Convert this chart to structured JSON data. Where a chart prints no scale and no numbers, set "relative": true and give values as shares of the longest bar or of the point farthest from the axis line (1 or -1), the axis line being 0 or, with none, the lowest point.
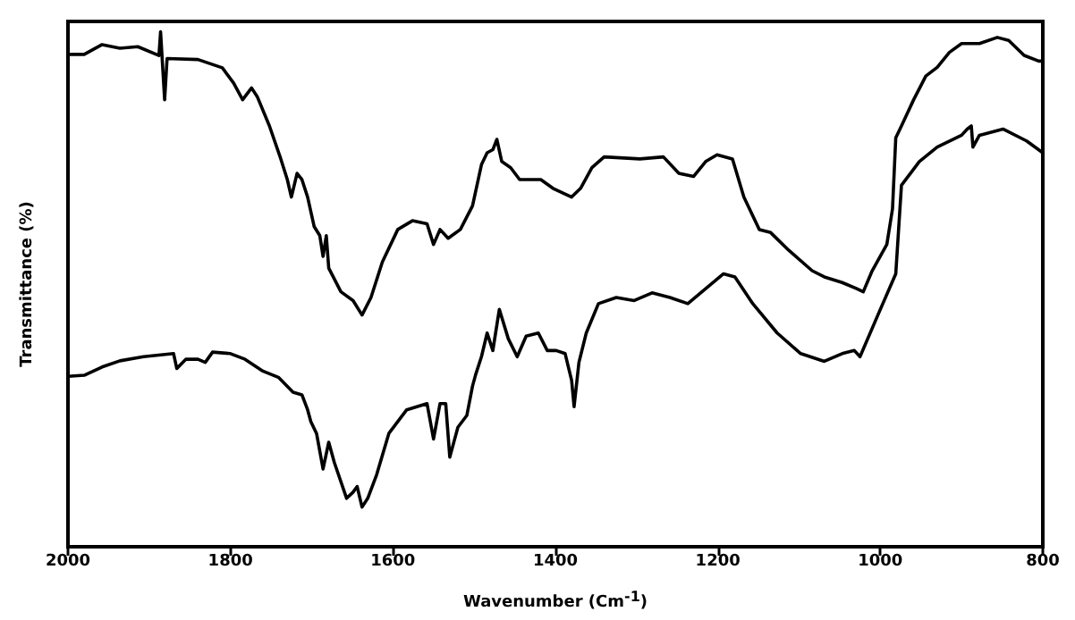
{
  "chart_data": {
    "type": "line",
    "relative": true,
    "xlabel": "Wavenumber (Cm$^{-1}$)",
    "ylabel": "Transmittance (%)",
    "xlim": [
      2000,
      800
    ],
    "xticks": [
      2000,
      1800,
      1600,
      1400,
      1200,
      1000,
      800
    ],
    "tick_labels": "x",
    "marker": "none",
    "line_style": "solid",
    "series": [
      {
        "color": "#000000",
        "x": [
          2000,
          1980,
          1958,
          1936,
          1914,
          1888,
          1886,
          1881,
          1878,
          1840,
          1810,
          1796,
          1785,
          1774,
          1767,
          1752,
          1738,
          1730,
          1725,
          1718,
          1712,
          1705,
          1697,
          1690,
          1686,
          1682,
          1679,
          1664,
          1649,
          1638,
          1627,
          1613,
          1594,
          1576,
          1558,
          1550,
          1542,
          1532,
          1517,
          1502,
          1491,
          1484,
          1477,
          1472,
          1466,
          1455,
          1444,
          1429,
          1418,
          1403,
          1380,
          1369,
          1355,
          1340,
          1296,
          1267,
          1248,
          1230,
          1215,
          1201,
          1182,
          1168,
          1149,
          1135,
          1113,
          1084,
          1069,
          1047,
          1029,
          1021,
          1010,
          992,
          985,
          981,
          974,
          959,
          944,
          930,
          915,
          900,
          878,
          856,
          842,
          823,
          805,
          800
        ],
        "values": [
          0.956,
          0.956,
          0.975,
          0.968,
          0.971,
          0.954,
          1.0,
          0.868,
          0.948,
          0.946,
          0.93,
          0.9,
          0.868,
          0.891,
          0.874,
          0.817,
          0.753,
          0.713,
          0.679,
          0.725,
          0.713,
          0.679,
          0.622,
          0.604,
          0.564,
          0.604,
          0.541,
          0.495,
          0.478,
          0.45,
          0.484,
          0.553,
          0.616,
          0.633,
          0.627,
          0.587,
          0.616,
          0.599,
          0.616,
          0.662,
          0.742,
          0.765,
          0.771,
          0.791,
          0.748,
          0.736,
          0.713,
          0.713,
          0.713,
          0.696,
          0.679,
          0.696,
          0.736,
          0.757,
          0.753,
          0.757,
          0.725,
          0.719,
          0.748,
          0.761,
          0.753,
          0.679,
          0.616,
          0.61,
          0.576,
          0.536,
          0.524,
          0.513,
          0.501,
          0.495,
          0.536,
          0.587,
          0.656,
          0.794,
          0.817,
          0.868,
          0.914,
          0.931,
          0.96,
          0.977,
          0.977,
          0.989,
          0.983,
          0.954,
          0.943,
          0.943
        ]
      },
      {
        "color": "#000000",
        "x": [
          2000,
          1980,
          1958,
          1936,
          1907,
          1870,
          1866,
          1855,
          1840,
          1831,
          1822,
          1800,
          1782,
          1760,
          1741,
          1723,
          1712,
          1705,
          1701,
          1694,
          1686,
          1679,
          1672,
          1657,
          1649,
          1644,
          1638,
          1631,
          1620,
          1605,
          1583,
          1558,
          1550,
          1542,
          1535,
          1530,
          1520,
          1509,
          1502,
          1498,
          1491,
          1484,
          1477,
          1469,
          1458,
          1447,
          1436,
          1421,
          1410,
          1399,
          1388,
          1380,
          1377,
          1371,
          1362,
          1347,
          1325,
          1303,
          1281,
          1259,
          1237,
          1215,
          1193,
          1179,
          1157,
          1127,
          1098,
          1069,
          1047,
          1032,
          1025,
          1003,
          981,
          974,
          952,
          930,
          900,
          893,
          888,
          886,
          878,
          849,
          820,
          800
        ],
        "values": [
          0.331,
          0.333,
          0.349,
          0.361,
          0.369,
          0.375,
          0.346,
          0.364,
          0.364,
          0.358,
          0.378,
          0.375,
          0.364,
          0.341,
          0.329,
          0.3,
          0.295,
          0.266,
          0.243,
          0.22,
          0.151,
          0.203,
          0.163,
          0.094,
          0.106,
          0.117,
          0.077,
          0.094,
          0.14,
          0.22,
          0.266,
          0.278,
          0.209,
          0.278,
          0.278,
          0.174,
          0.232,
          0.255,
          0.312,
          0.335,
          0.369,
          0.415,
          0.381,
          0.461,
          0.404,
          0.369,
          0.409,
          0.415,
          0.381,
          0.381,
          0.375,
          0.323,
          0.272,
          0.358,
          0.415,
          0.472,
          0.484,
          0.478,
          0.493,
          0.484,
          0.472,
          0.501,
          0.53,
          0.524,
          0.472,
          0.415,
          0.375,
          0.36,
          0.375,
          0.381,
          0.369,
          0.45,
          0.53,
          0.702,
          0.748,
          0.776,
          0.799,
          0.811,
          0.817,
          0.776,
          0.799,
          0.811,
          0.788,
          0.765
        ]
      }
    ]
  }
}
